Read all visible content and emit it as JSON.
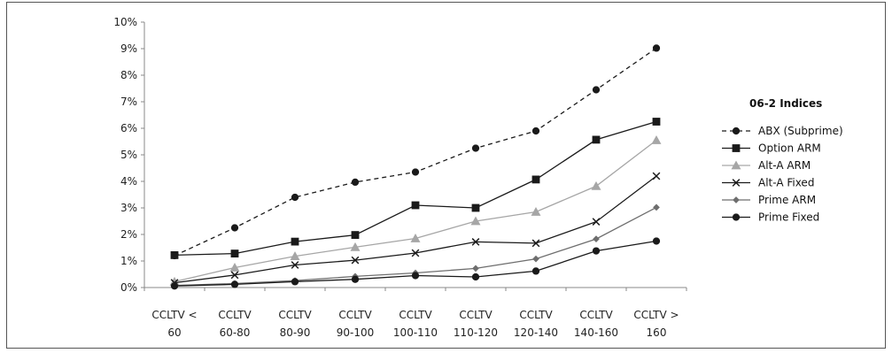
{
  "chart_data": {
    "type": "line",
    "title": "",
    "xlabel": "",
    "ylabel": "",
    "ylim": [
      0,
      10
    ],
    "y_ticks": [
      "0%",
      "1%",
      "2%",
      "3%",
      "4%",
      "5%",
      "6%",
      "7%",
      "8%",
      "9%",
      "10%"
    ],
    "categories": [
      [
        "CCLTV <",
        "60"
      ],
      [
        "CCLTV",
        "60-80"
      ],
      [
        "CCLTV",
        "80-90"
      ],
      [
        "CCLTV",
        "90-100"
      ],
      [
        "CCLTV",
        "100-110"
      ],
      [
        "CCLTV",
        "110-120"
      ],
      [
        "CCLTV",
        "120-140"
      ],
      [
        "CCLTV",
        "140-160"
      ],
      [
        "CCLTV >",
        "160"
      ]
    ],
    "grid": false,
    "legend": {
      "title": "06-2 Indices",
      "position": "right"
    },
    "series": [
      {
        "name": "ABX (Subprime)",
        "color": "#1a1a1a",
        "dash": "dashed",
        "marker": "circle",
        "values": [
          1.2,
          2.25,
          3.4,
          3.97,
          4.35,
          5.25,
          5.9,
          7.45,
          9.02
        ]
      },
      {
        "name": "Option ARM",
        "color": "#1a1a1a",
        "dash": "solid",
        "marker": "square",
        "values": [
          1.22,
          1.28,
          1.73,
          1.98,
          3.1,
          3.0,
          4.07,
          5.57,
          6.25
        ]
      },
      {
        "name": "Alt-A ARM",
        "color": "#a6a6a6",
        "dash": "solid",
        "marker": "triangle",
        "values": [
          0.22,
          0.75,
          1.18,
          1.52,
          1.85,
          2.5,
          2.85,
          3.82,
          5.55
        ]
      },
      {
        "name": "Alt-A Fixed",
        "color": "#1a1a1a",
        "dash": "solid",
        "marker": "x",
        "values": [
          0.18,
          0.47,
          0.85,
          1.03,
          1.3,
          1.72,
          1.67,
          2.48,
          4.2
        ]
      },
      {
        "name": "Prime ARM",
        "color": "#6e6e6e",
        "dash": "solid",
        "marker": "diamond",
        "values": [
          0.08,
          0.15,
          0.26,
          0.42,
          0.55,
          0.72,
          1.08,
          1.83,
          3.02
        ]
      },
      {
        "name": "Prime Fixed",
        "color": "#1a1a1a",
        "dash": "solid",
        "marker": "circle",
        "values": [
          0.06,
          0.12,
          0.22,
          0.31,
          0.45,
          0.4,
          0.62,
          1.38,
          1.75
        ]
      }
    ]
  }
}
